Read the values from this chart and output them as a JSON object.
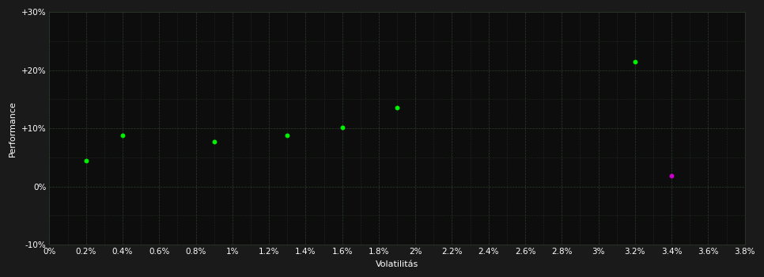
{
  "background_color": "#1a1a1a",
  "plot_bg_color": "#0d0d0d",
  "grid_color": "#2d3d2d",
  "xlabel": "Volatilitás",
  "ylabel": "Performance",
  "xlim": [
    0.0,
    0.038
  ],
  "ylim": [
    -0.1,
    0.3
  ],
  "ytick_values": [
    -0.1,
    0.0,
    0.1,
    0.2,
    0.3
  ],
  "ytick_labels": [
    "-10%",
    "0%",
    "+10%",
    "+20%",
    "+30%"
  ],
  "green_dots": [
    [
      0.002,
      0.045
    ],
    [
      0.004,
      0.088
    ],
    [
      0.009,
      0.077
    ],
    [
      0.013,
      0.088
    ],
    [
      0.016,
      0.102
    ],
    [
      0.019,
      0.135
    ],
    [
      0.032,
      0.215
    ]
  ],
  "magenta_dot": [
    0.034,
    0.018
  ],
  "dot_color_green": "#00ee00",
  "dot_color_magenta": "#cc00cc",
  "dot_size": 18,
  "font_color": "#ffffff",
  "font_size_labels": 8,
  "font_size_ticks": 7.5
}
